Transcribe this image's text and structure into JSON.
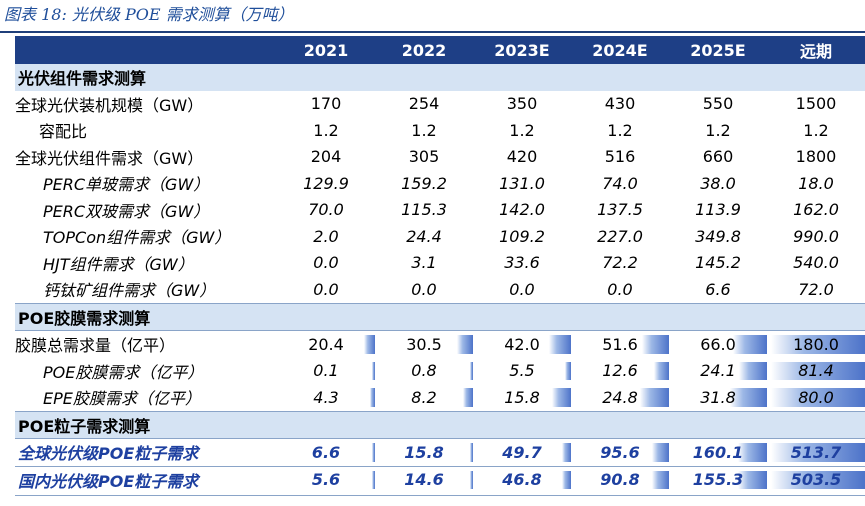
{
  "caption": "图表 18:  光伏级 POE 需求测算（万吨）",
  "columns": [
    "",
    "2021",
    "2022",
    "2023E",
    "2024E",
    "2025E",
    "远期"
  ],
  "sections": [
    {
      "title": "光伏组件需求测算",
      "rows": [
        {
          "label": "全球光伏装机规模（GW）",
          "values": [
            "170",
            "254",
            "350",
            "430",
            "550",
            "1500"
          ],
          "style": "plain"
        },
        {
          "label": "容配比",
          "values": [
            "1.2",
            "1.2",
            "1.2",
            "1.2",
            "1.2",
            "1.2"
          ],
          "style": "ind1"
        },
        {
          "label": "全球光伏组件需求（GW）",
          "values": [
            "204",
            "305",
            "420",
            "516",
            "660",
            "1800"
          ],
          "style": "plain"
        },
        {
          "label": "PERC单玻需求（GW）",
          "values": [
            "129.9",
            "159.2",
            "131.0",
            "74.0",
            "38.0",
            "18.0"
          ],
          "style": "ital"
        },
        {
          "label": "PERC双玻需求（GW）",
          "values": [
            "70.0",
            "115.3",
            "142.0",
            "137.5",
            "113.9",
            "162.0"
          ],
          "style": "ital"
        },
        {
          "label": "TOPCon组件需求（GW）",
          "values": [
            "2.0",
            "24.4",
            "109.2",
            "227.0",
            "349.8",
            "990.0"
          ],
          "style": "ital"
        },
        {
          "label": "HJT组件需求（GW）",
          "values": [
            "0.0",
            "3.1",
            "33.6",
            "72.2",
            "145.2",
            "540.0"
          ],
          "style": "ital"
        },
        {
          "label": "钙钛矿组件需求（GW）",
          "values": [
            "0.0",
            "0.0",
            "0.0",
            "0.0",
            "6.6",
            "72.0"
          ],
          "style": "ital"
        }
      ]
    },
    {
      "title": "POE胶膜需求测算",
      "rows": [
        {
          "label": "胶膜总需求量（亿平）",
          "values": [
            "20.4",
            "30.5",
            "42.0",
            "51.6",
            "66.0",
            "180.0"
          ],
          "style": "plain",
          "bars": [
            0.113,
            0.169,
            0.233,
            0.287,
            0.367,
            1.0
          ]
        },
        {
          "label": "POE胶膜需求（亿平）",
          "values": [
            "0.1",
            "0.8",
            "5.5",
            "12.6",
            "24.1",
            "81.4"
          ],
          "style": "ital",
          "bars": [
            0.001,
            0.01,
            0.068,
            0.155,
            0.296,
            1.0
          ]
        },
        {
          "label": "EPE胶膜需求（亿平）",
          "values": [
            "4.3",
            "8.2",
            "15.8",
            "24.8",
            "31.8",
            "80.0"
          ],
          "style": "ital",
          "bars": [
            0.054,
            0.103,
            0.198,
            0.31,
            0.398,
            1.0
          ]
        }
      ]
    },
    {
      "title": "POE粒子需求测算",
      "rows": [
        {
          "label": "全球光伏级POE粒子需求",
          "values": [
            "6.6",
            "15.8",
            "49.7",
            "95.6",
            "160.1",
            "513.7"
          ],
          "style": "blue",
          "bars": [
            0.013,
            0.031,
            0.097,
            0.186,
            0.312,
            1.0
          ]
        },
        {
          "label": "国内光伏级POE粒子需求",
          "values": [
            "5.6",
            "14.6",
            "46.8",
            "90.8",
            "155.3",
            "503.5"
          ],
          "style": "blue",
          "bars": [
            0.011,
            0.029,
            0.093,
            0.18,
            0.308,
            1.0
          ]
        }
      ]
    }
  ]
}
